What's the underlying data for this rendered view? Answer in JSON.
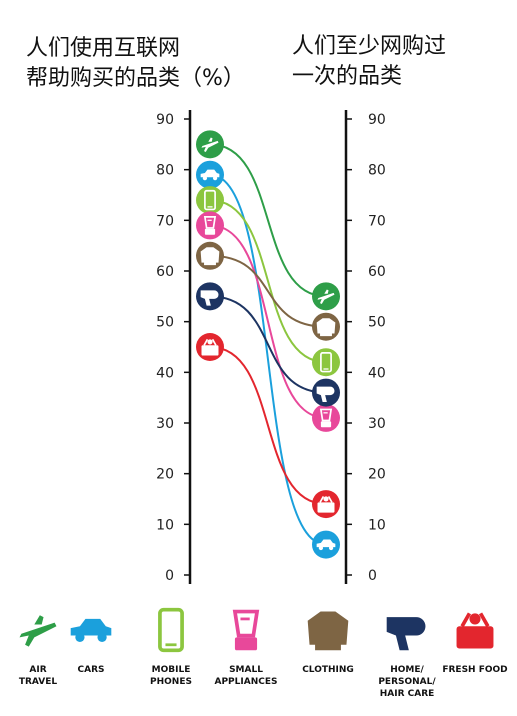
{
  "titles": {
    "left": "人们使用互联网\n帮助购买的品类（%）",
    "right": "人们至少网购过\n一次的品类"
  },
  "chart_data": {
    "type": "slope",
    "title": "人们使用互联网帮助购买的品类（%）",
    "right_title": "人们至少网购过一次的品类",
    "ylim": [
      0,
      90
    ],
    "yticks": [
      0,
      10,
      20,
      30,
      40,
      50,
      60,
      70,
      80,
      90
    ],
    "series": [
      {
        "name": "AIR\nTRAVEL",
        "icon": "airplane-icon",
        "color": "#2e9e48",
        "left": 85,
        "right": 55
      },
      {
        "name": "CARS",
        "icon": "car-icon",
        "color": "#1ba0dc",
        "left": 79,
        "right": 6
      },
      {
        "name": "MOBILE\nPHONES",
        "icon": "mobile-phone-icon",
        "color": "#8cc63f",
        "left": 74,
        "right": 42
      },
      {
        "name": "SMALL\nAPPLIANCES",
        "icon": "blender-icon",
        "color": "#e8489a",
        "left": 69,
        "right": 31
      },
      {
        "name": "CLOTHING",
        "icon": "sweater-icon",
        "color": "#7e6544",
        "left": 63,
        "right": 49
      },
      {
        "name": "HOME/\nPERSONAL/\nHAIR CARE",
        "icon": "hair-dryer-icon",
        "color": "#1d3462",
        "left": 55,
        "right": 36
      },
      {
        "name": "FRESH FOOD",
        "icon": "basket-icon",
        "color": "#e3262e",
        "left": 45,
        "right": 14
      }
    ]
  }
}
